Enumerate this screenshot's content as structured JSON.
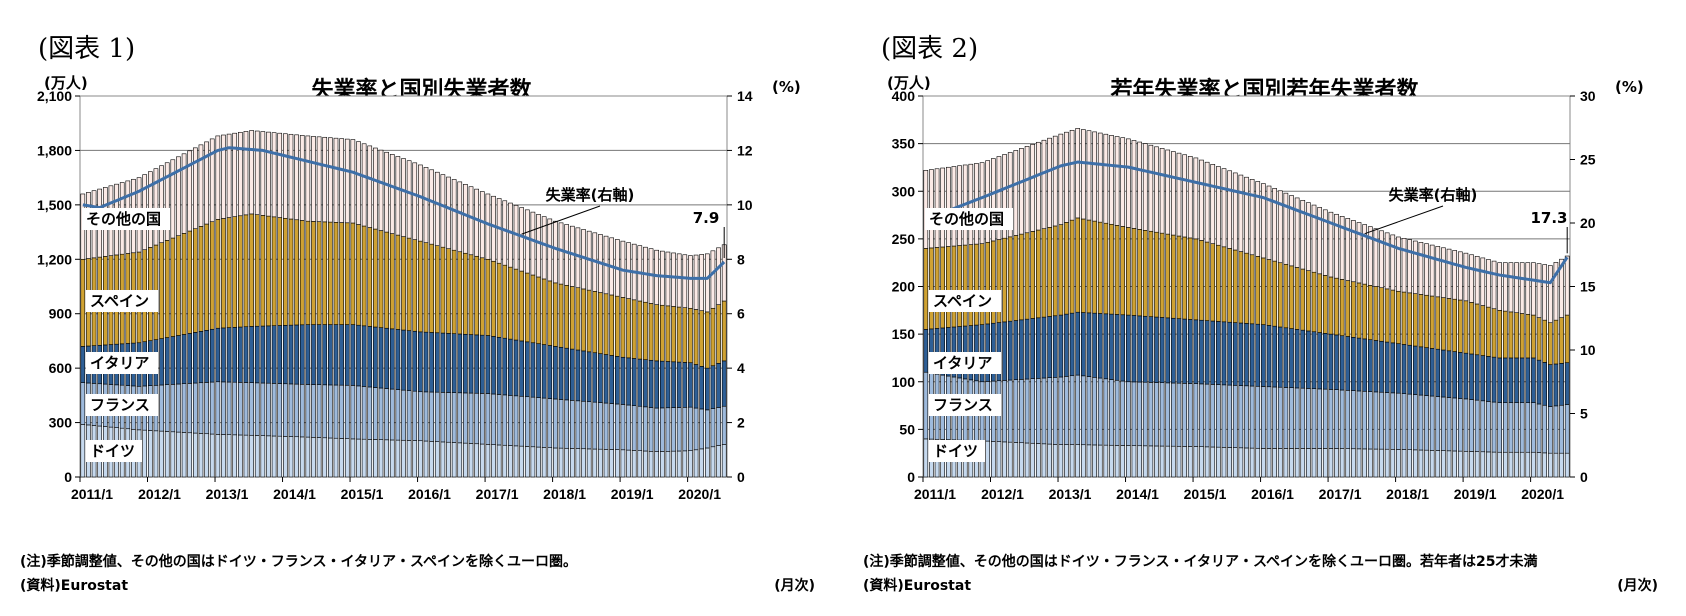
{
  "panels": [
    {
      "figure_label": "(図表 1)",
      "unit_left": "(万人)",
      "unit_right": "(%)",
      "note": "(注)季節調整値、その他の国はドイツ・フランス・イタリア・スペインを除くユーロ圏。",
      "source": "(資料)Eurostat",
      "period": "(月次)",
      "chart_data": {
        "type": "bar",
        "title": "失業率と国別失業者数",
        "xlabel": "",
        "ylabel": "",
        "x_tick_labels": [
          "2011/1",
          "2012/1",
          "2013/1",
          "2014/1",
          "2015/1",
          "2016/1",
          "2017/1",
          "2018/1",
          "2019/1",
          "2020/1"
        ],
        "ylim": [
          0,
          2100
        ],
        "y_ticks": [
          0,
          300,
          600,
          900,
          1200,
          1500,
          1800,
          2100
        ],
        "y_tick_labels": [
          "0",
          "300",
          "600",
          "900",
          "1,200",
          "1,500",
          "1,800",
          "2,100"
        ],
        "y2lim": [
          0,
          14
        ],
        "y2_ticks": [
          0,
          2,
          4,
          6,
          8,
          10,
          12,
          14
        ],
        "stacked": true,
        "grid": true,
        "series_order": [
          "ドイツ",
          "フランス",
          "イタリア",
          "スペイン",
          "その他の国"
        ],
        "series_colors": {
          "ドイツ": "#c6d9ee",
          "フランス": "#9ebadc",
          "イタリア": "#2e5f96",
          "スペイン": "#cfa233",
          "その他の国": "#fbeae6"
        },
        "cumulative_keyframes": {
          "months": [
            0,
            10,
            24,
            30,
            40,
            48,
            60,
            72,
            84,
            96,
            102,
            108,
            111,
            114
          ],
          "ドイツ": [
            290,
            260,
            235,
            230,
            220,
            210,
            200,
            180,
            160,
            150,
            140,
            145,
            160,
            180
          ],
          "フランス": [
            520,
            500,
            525,
            520,
            510,
            505,
            470,
            460,
            430,
            400,
            380,
            385,
            370,
            390
          ],
          "イタリア": [
            720,
            740,
            820,
            830,
            840,
            840,
            800,
            780,
            720,
            660,
            640,
            630,
            600,
            640
          ],
          "スペイン": [
            1200,
            1240,
            1420,
            1450,
            1410,
            1400,
            1300,
            1200,
            1070,
            990,
            950,
            930,
            910,
            970
          ],
          "その他の国": [
            1560,
            1650,
            1880,
            1910,
            1880,
            1860,
            1720,
            1560,
            1410,
            1300,
            1250,
            1220,
            1230,
            1280
          ]
        },
        "rate_line": {
          "name": "失業率(右軸)",
          "months": [
            0,
            3,
            10,
            24,
            26,
            32,
            40,
            48,
            60,
            72,
            84,
            96,
            102,
            108,
            111,
            114
          ],
          "values": [
            10.0,
            9.9,
            10.5,
            12.0,
            12.1,
            12.0,
            11.6,
            11.2,
            10.3,
            9.3,
            8.4,
            7.6,
            7.4,
            7.3,
            7.3,
            7.9
          ]
        },
        "series_labels": [
          "その他の国",
          "スペイン",
          "イタリア",
          "フランス",
          "ドイツ"
        ],
        "annotations": [
          {
            "text": "失業率(右軸)"
          },
          {
            "text": "7.9"
          }
        ]
      }
    },
    {
      "figure_label": "(図表 2)",
      "unit_left": "(万人)",
      "unit_right": "(%)",
      "note": "(注)季節調整値、その他の国はドイツ・フランス・イタリア・スペインを除くユーロ圏。若年者は25才未満",
      "source": "(資料)Eurostat",
      "period": "(月次)",
      "chart_data": {
        "type": "bar",
        "title": "若年失業率と国別若年失業者数",
        "xlabel": "",
        "ylabel": "",
        "x_tick_labels": [
          "2011/1",
          "2012/1",
          "2013/1",
          "2014/1",
          "2015/1",
          "2016/1",
          "2017/1",
          "2018/1",
          "2019/1",
          "2020/1"
        ],
        "ylim": [
          0,
          400
        ],
        "y_ticks": [
          0,
          50,
          100,
          150,
          200,
          250,
          300,
          350,
          400
        ],
        "y_tick_labels": [
          "0",
          "50",
          "100",
          "150",
          "200",
          "250",
          "300",
          "350",
          "400"
        ],
        "y2lim": [
          0,
          30
        ],
        "y2_ticks": [
          0,
          5,
          10,
          15,
          20,
          25,
          30
        ],
        "stacked": true,
        "grid": true,
        "series_order": [
          "ドイツ",
          "フランス",
          "イタリア",
          "スペイン",
          "その他の国"
        ],
        "series_colors": {
          "ドイツ": "#c6d9ee",
          "フランス": "#9ebadc",
          "イタリア": "#2e5f96",
          "スペイン": "#cfa233",
          "その他の国": "#fbeae6"
        },
        "cumulative_keyframes": {
          "months": [
            0,
            10,
            24,
            27,
            36,
            48,
            60,
            72,
            84,
            96,
            102,
            108,
            111,
            114
          ],
          "ドイツ": [
            40,
            38,
            34,
            34,
            33,
            32,
            30,
            30,
            29,
            27,
            26,
            26,
            25,
            25
          ],
          "フランス": [
            110,
            100,
            105,
            107,
            100,
            98,
            95,
            92,
            88,
            82,
            78,
            78,
            74,
            76
          ],
          "イタリア": [
            155,
            160,
            170,
            173,
            170,
            165,
            160,
            150,
            140,
            130,
            125,
            125,
            118,
            120
          ],
          "スペイン": [
            240,
            245,
            265,
            272,
            262,
            250,
            230,
            210,
            195,
            185,
            175,
            170,
            162,
            170
          ],
          "その他の国": [
            322,
            330,
            360,
            366,
            355,
            335,
            308,
            278,
            252,
            235,
            225,
            225,
            222,
            232
          ]
        },
        "rate_line": {
          "name": "失業率(右軸)",
          "months": [
            0,
            3,
            10,
            24,
            27,
            36,
            48,
            60,
            72,
            84,
            96,
            102,
            108,
            111,
            114
          ],
          "values": [
            21.0,
            20.8,
            22.0,
            24.5,
            24.8,
            24.4,
            23.2,
            22.0,
            20.0,
            18.0,
            16.5,
            15.9,
            15.5,
            15.3,
            17.3
          ]
        },
        "series_labels": [
          "その他の国",
          "スペイン",
          "イタリア",
          "フランス",
          "ドイツ"
        ],
        "annotations": [
          {
            "text": "失業率(右軸)"
          },
          {
            "text": "17.3"
          }
        ]
      }
    }
  ]
}
